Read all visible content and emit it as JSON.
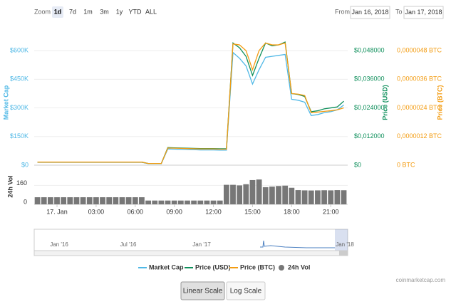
{
  "toolbar": {
    "zoom_label": "Zoom",
    "zoom_buttons": [
      "1d",
      "7d",
      "1m",
      "3m",
      "1y",
      "YTD",
      "ALL"
    ],
    "selected_button": 0,
    "from_label": "From",
    "from_date": "Jan 16, 2018",
    "to_label": "To",
    "to_date": "Jan 17, 2018"
  },
  "chart_data": {
    "type": "line",
    "x": [
      -1.5,
      -1,
      -0.5,
      0,
      0.5,
      1,
      1.5,
      2,
      2.5,
      3,
      3.5,
      4,
      4.5,
      5,
      5.5,
      6,
      6.5,
      7,
      7.5,
      8,
      8.5,
      9,
      9.5,
      10,
      10.5,
      11,
      11.5,
      12,
      12.5,
      13,
      13.5,
      14,
      14.5,
      15,
      15.5,
      16,
      16.5,
      17,
      17.5,
      18,
      18.5,
      19,
      19.5,
      20,
      20.5,
      21,
      21.5,
      22
    ],
    "xlim": [
      -1.75,
      22.3
    ],
    "xticks": [
      {
        "value": 0,
        "label": "17. Jan"
      },
      {
        "value": 3,
        "label": "03:00"
      },
      {
        "value": 6,
        "label": "06:00"
      },
      {
        "value": 9,
        "label": "09:00"
      },
      {
        "value": 12,
        "label": "12:00"
      },
      {
        "value": 15,
        "label": "15:00"
      },
      {
        "value": 18,
        "label": "18:00"
      },
      {
        "value": 21,
        "label": "21:00"
      }
    ],
    "ylabel": "Market Cap",
    "ylim": [
      0,
      660000
    ],
    "yticks": [
      {
        "value": 0,
        "label": "$0"
      },
      {
        "value": 150000,
        "label": "$150K"
      },
      {
        "value": 300000,
        "label": "$300K"
      },
      {
        "value": 450000,
        "label": "$450K"
      },
      {
        "value": 600000,
        "label": "$600K"
      }
    ],
    "y2label": "Price (USD)",
    "y2lim": [
      0,
      0.0528
    ],
    "y2ticks": [
      {
        "value": 0,
        "label": "$0"
      },
      {
        "value": 0.012,
        "label": "$0,012000"
      },
      {
        "value": 0.024,
        "label": "$0,024000"
      },
      {
        "value": 0.036,
        "label": "$0,036000"
      },
      {
        "value": 0.048,
        "label": "$0,048000"
      }
    ],
    "y3label": "Price (BTC)",
    "y3lim": [
      0,
      5.28e-06
    ],
    "y3ticks": [
      {
        "value": 0,
        "label": "0 BTC"
      },
      {
        "value": 1.2e-06,
        "label": "0,0000012 BTC"
      },
      {
        "value": 2.4e-06,
        "label": "0,0000024 BTC"
      },
      {
        "value": 3.6e-06,
        "label": "0,0000036 BTC"
      },
      {
        "value": 4.8e-06,
        "label": "0,0000048 BTC"
      }
    ],
    "y4label": "24h Vol",
    "y4lim": [
      0,
      283
    ],
    "y4ticks": [
      0,
      160
    ],
    "grid": true,
    "series": [
      {
        "name": "Market Cap",
        "color": "#4fb8e6",
        "axis": "y",
        "values": [
          15000,
          15000,
          15000,
          15000,
          15000,
          15000,
          15000,
          15000,
          15000,
          15000,
          15000,
          15000,
          15000,
          15000,
          15000,
          15000,
          15000,
          8000,
          8000,
          8000,
          85000,
          84000,
          83000,
          82000,
          81000,
          80000,
          80000,
          80000,
          79000,
          79000,
          590000,
          560000,
          520000,
          425000,
          500000,
          565000,
          570000,
          575000,
          580000,
          345000,
          340000,
          330000,
          260000,
          265000,
          275000,
          280000,
          290000,
          315000
        ]
      },
      {
        "name": "Price (USD)",
        "color": "#0e8f5b",
        "axis": "y2",
        "values": [
          0.00128,
          0.00128,
          0.00128,
          0.00128,
          0.00128,
          0.00128,
          0.00128,
          0.00128,
          0.00128,
          0.00128,
          0.00128,
          0.00128,
          0.00128,
          0.00128,
          0.00128,
          0.00128,
          0.00128,
          0.00072,
          0.00072,
          0.00072,
          0.00736,
          0.00728,
          0.0072,
          0.00712,
          0.00704,
          0.00696,
          0.00696,
          0.00696,
          0.00688,
          0.00688,
          0.0512,
          0.0492,
          0.0456,
          0.0376,
          0.0448,
          0.0512,
          0.05,
          0.0504,
          0.0516,
          0.03,
          0.0296,
          0.0288,
          0.0224,
          0.0228,
          0.0236,
          0.024,
          0.0244,
          0.0268
        ]
      },
      {
        "name": "Price (BTC)",
        "color": "#f39c12",
        "axis": "y3",
        "values": [
          1.28e-07,
          1.28e-07,
          1.28e-07,
          1.28e-07,
          1.28e-07,
          1.28e-07,
          1.28e-07,
          1.28e-07,
          1.28e-07,
          1.28e-07,
          1.28e-07,
          1.28e-07,
          1.28e-07,
          1.28e-07,
          1.28e-07,
          1.28e-07,
          1.28e-07,
          7.2e-08,
          7.2e-08,
          7.2e-08,
          7.2e-07,
          7.12e-07,
          7.04e-07,
          6.96e-07,
          6.88e-07,
          6.8e-07,
          6.8e-07,
          6.8e-07,
          6.72e-07,
          6.72e-07,
          5.08e-06,
          5.04e-06,
          4.8e-06,
          4e-06,
          4.8e-06,
          5.12e-06,
          5.04e-06,
          5.04e-06,
          5.12e-06,
          3e-06,
          2.976e-06,
          2.92e-06,
          2.2e-06,
          2.224e-06,
          2.256e-06,
          2.28e-06,
          2.32e-06,
          2.4e-06
        ]
      },
      {
        "name": "24h Vol",
        "color": "#777777",
        "axis": "y4",
        "type": "bar",
        "values": [
          60,
          60,
          60,
          60,
          60,
          60,
          60,
          60,
          60,
          60,
          60,
          60,
          60,
          60,
          60,
          60,
          60,
          32,
          32,
          32,
          32,
          32,
          32,
          32,
          32,
          32,
          32,
          32,
          32,
          165,
          165,
          160,
          170,
          205,
          210,
          145,
          150,
          155,
          158,
          140,
          120,
          118,
          117,
          118,
          119,
          118,
          120,
          119
        ]
      }
    ]
  },
  "navigator": {
    "labels": [
      "Jan '16",
      "Jul '16",
      "Jan '17",
      "Jan '18"
    ]
  },
  "credit": "coinmarketcap.com",
  "scale_buttons": [
    "Linear Scale",
    "Log Scale"
  ],
  "active_scale": 0
}
